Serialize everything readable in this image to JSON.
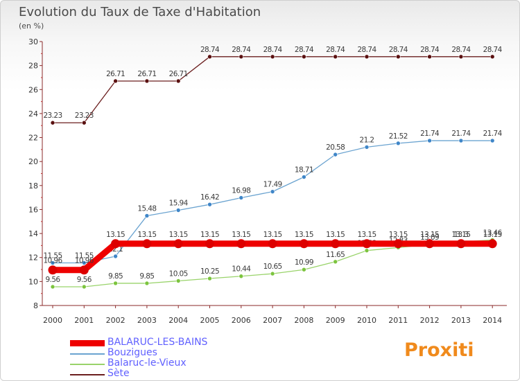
{
  "header": {
    "title": "Evolution du Taux de Taxe d'Habitation",
    "unit": "(en %)"
  },
  "brand": "Proxiti",
  "colors": {
    "axis": "#8b2a2a",
    "label": "#333333"
  },
  "chart_data": {
    "type": "line",
    "title": "Evolution du Taux de Taxe d'Habitation",
    "ylabel": "(en %)",
    "ylim": [
      8,
      30
    ],
    "yticks": [
      8,
      10,
      12,
      14,
      16,
      18,
      20,
      22,
      24,
      26,
      28,
      30
    ],
    "x": [
      "2000",
      "2001",
      "2002",
      "2003",
      "2004",
      "2005",
      "2006",
      "2007",
      "2008",
      "2009",
      "2010",
      "2011",
      "2012",
      "2013",
      "2014"
    ],
    "legend_position": "bottom-left",
    "series": [
      {
        "name": "Sète",
        "color": "#6b1e1e",
        "marker": "#5a1010",
        "width": 1.3,
        "values": [
          23.23,
          23.23,
          26.71,
          26.71,
          26.71,
          28.74,
          28.74,
          28.74,
          28.74,
          28.74,
          28.74,
          28.74,
          28.74,
          28.74,
          28.74
        ],
        "labels": [
          "23.23",
          "23.23",
          "26.71",
          "26.71",
          "26.71",
          "28.74",
          "28.74",
          "28.74",
          "28.74",
          "28.74",
          "28.74",
          "28.74",
          "28.74",
          "28.74",
          "28.74"
        ]
      },
      {
        "name": "Bouzigues",
        "color": "#6aa3d0",
        "marker": "#3f86c8",
        "width": 1.3,
        "values": [
          11.55,
          11.55,
          12.1,
          15.48,
          15.94,
          16.42,
          16.98,
          17.49,
          18.71,
          20.58,
          21.2,
          21.52,
          21.74,
          21.74,
          21.74
        ],
        "labels": [
          "11.55",
          "11.55",
          "12.1",
          "15.48",
          "15.94",
          "16.42",
          "16.98",
          "17.49",
          "18.71",
          "20.58",
          "21.2",
          "21.52",
          "21.74",
          "21.74",
          "21.74"
        ]
      },
      {
        "name": "Balaruc-le-Vieux",
        "color": "#99d36a",
        "marker": "#7cc43e",
        "width": 1.3,
        "values": [
          9.56,
          9.56,
          9.85,
          9.85,
          10.05,
          10.25,
          10.44,
          10.65,
          10.99,
          11.65,
          12.58,
          12.83,
          13.09,
          13.3,
          13.46
        ],
        "labels": [
          "9.56",
          "9.56",
          "9.85",
          "9.85",
          "10.05",
          "10.25",
          "10.44",
          "10.65",
          "10.99",
          "11.65",
          "12.58",
          "12.83",
          "13.09",
          "13.3",
          "13.46"
        ]
      },
      {
        "name": "BALARUC-LES-BAINS",
        "color": "#ee0000",
        "marker": "#dd0000",
        "width": 9,
        "values": [
          10.96,
          10.96,
          13.15,
          13.15,
          13.15,
          13.15,
          13.15,
          13.15,
          13.15,
          13.15,
          13.15,
          13.15,
          13.15,
          13.15,
          13.15
        ],
        "labels": [
          "10.96",
          "10.96",
          "13.15",
          "13.15",
          "13.15",
          "13.15",
          "13.15",
          "13.15",
          "13.15",
          "13.15",
          "13.15",
          "13.15",
          "13.15",
          "13.15",
          "13.15"
        ]
      }
    ]
  },
  "legend": [
    {
      "label": "BALARUC-LES-BAINS",
      "color": "#ee0000"
    },
    {
      "label": "Bouzigues",
      "color": "#6aa3d0"
    },
    {
      "label": "Balaruc-le-Vieux",
      "color": "#99d36a"
    },
    {
      "label": "Sète",
      "color": "#6b1e1e"
    }
  ]
}
